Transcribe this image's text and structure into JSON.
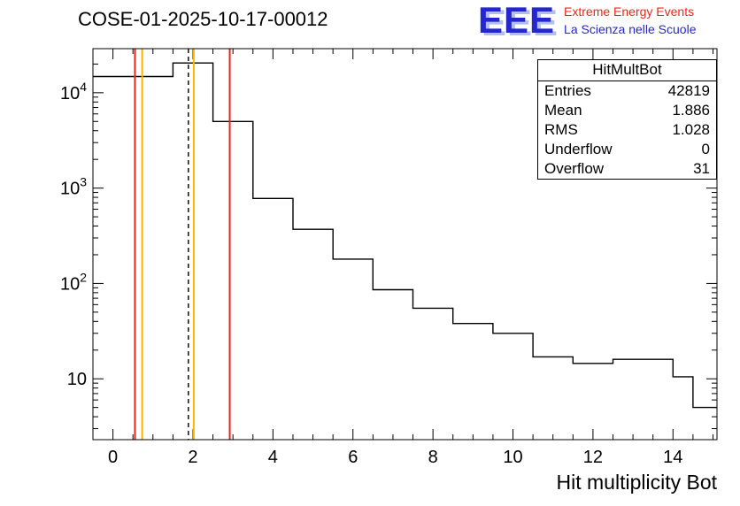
{
  "page": {
    "title": "COSE-01-2025-10-17-00012"
  },
  "logo": {
    "eee": "EEE",
    "line1": "Extreme Energy Events",
    "line2": "La Scienza nelle Scuole",
    "eee_color": "#2626cf",
    "line1_color": "#e8261b",
    "line2_color": "#2626cf"
  },
  "stats": {
    "title": "HitMultBot",
    "rows": [
      {
        "label": "Entries",
        "value": "42819"
      },
      {
        "label": "Mean",
        "value": "1.886"
      },
      {
        "label": "RMS",
        "value": "1.028"
      },
      {
        "label": "Underflow",
        "value": "0"
      },
      {
        "label": "Overflow",
        "value": "31"
      }
    ]
  },
  "axes": {
    "x_title": "Hit multiplicity Bot"
  },
  "chart_data": {
    "type": "bar",
    "subtype": "step-histogram",
    "title": "COSE-01-2025-10-17-00012",
    "xlabel": "Hit multiplicity Bot",
    "ylabel": "",
    "x_scale": "linear",
    "y_scale": "log",
    "xlim": [
      -0.5,
      15.1
    ],
    "ylim": [
      2.3,
      29000
    ],
    "grid": false,
    "x_major_ticks": [
      0,
      2,
      4,
      6,
      8,
      10,
      12,
      14
    ],
    "x_minor_step": 0.5,
    "y_major_ticks": [
      10,
      100,
      1000,
      10000
    ],
    "line_color": "#000000",
    "bins": [
      {
        "x0": -0.5,
        "x1": 1.5,
        "y": 14800
      },
      {
        "x0": 1.5,
        "x1": 2.5,
        "y": 20500
      },
      {
        "x0": 2.5,
        "x1": 3.5,
        "y": 5000
      },
      {
        "x0": 3.5,
        "x1": 4.5,
        "y": 780
      },
      {
        "x0": 4.5,
        "x1": 5.5,
        "y": 370
      },
      {
        "x0": 5.5,
        "x1": 6.5,
        "y": 180
      },
      {
        "x0": 6.5,
        "x1": 7.5,
        "y": 86
      },
      {
        "x0": 7.5,
        "x1": 8.5,
        "y": 55
      },
      {
        "x0": 8.5,
        "x1": 9.5,
        "y": 38
      },
      {
        "x0": 9.5,
        "x1": 10.5,
        "y": 30
      },
      {
        "x0": 10.5,
        "x1": 11.5,
        "y": 17
      },
      {
        "x0": 11.5,
        "x1": 12.5,
        "y": 14.5
      },
      {
        "x0": 12.5,
        "x1": 14.0,
        "y": 16
      },
      {
        "x0": 14.0,
        "x1": 14.5,
        "y": 10.5
      },
      {
        "x0": 14.5,
        "x1": 15.1,
        "y": 5
      }
    ],
    "vlines": [
      {
        "x": 0.55,
        "color": "#e8261b",
        "style": "solid"
      },
      {
        "x": 0.73,
        "color": "#ffb300",
        "style": "solid"
      },
      {
        "x": 1.886,
        "color": "#000000",
        "style": "dashed"
      },
      {
        "x": 2.02,
        "color": "#ffb300",
        "style": "solid"
      },
      {
        "x": 2.92,
        "color": "#e8261b",
        "style": "solid"
      }
    ]
  }
}
